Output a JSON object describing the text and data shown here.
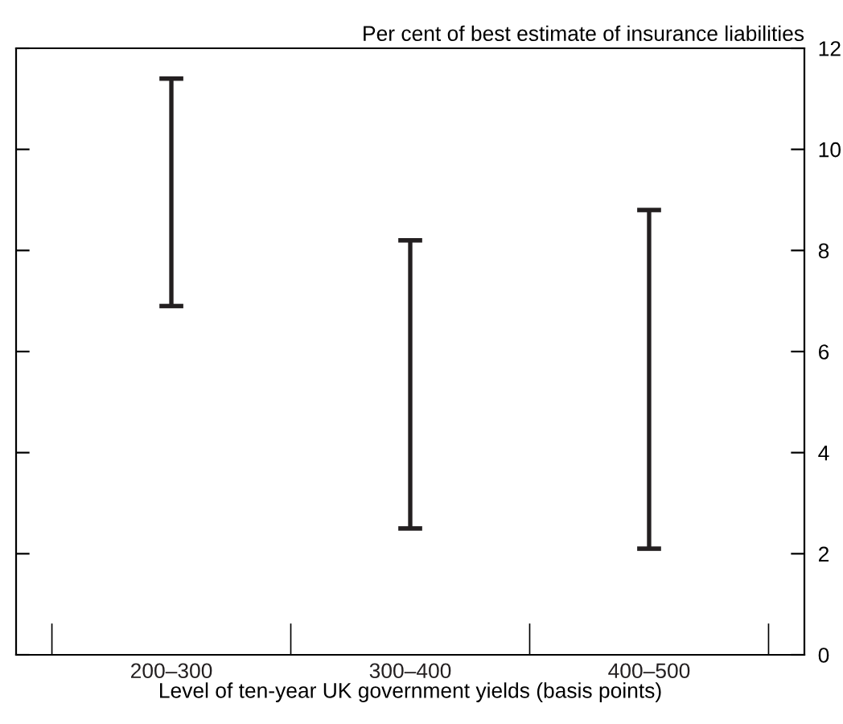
{
  "chart_data": {
    "type": "bar",
    "xlabel": "Level of ten-year UK government yields (basis points)",
    "ylabel": "Per cent of best estimate of insurance liabilities",
    "categories": [
      "200–300",
      "300–400",
      "400–500"
    ],
    "base": [
      6.9,
      2.5,
      2.1
    ],
    "values": [
      4.5,
      5.7,
      6.7
    ],
    "color": "#231f20",
    "ylim": [
      0,
      12
    ],
    "yticks": [
      0,
      2,
      4,
      6,
      8,
      10,
      12
    ],
    "grid": false,
    "legend": false
  }
}
